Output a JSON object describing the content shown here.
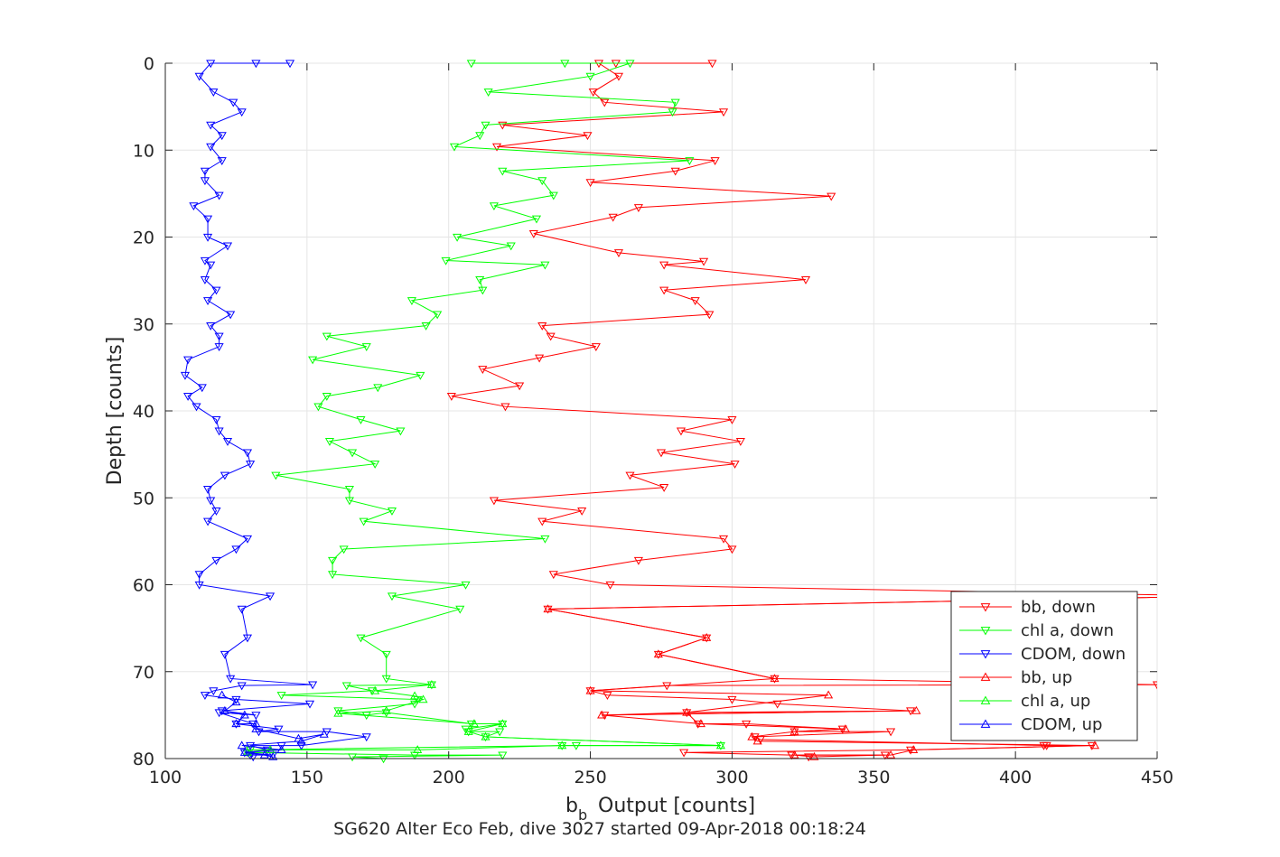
{
  "chart_data": {
    "type": "line",
    "xlabel_main": "b",
    "xlabel_sub": "b",
    "xlabel_rest": "Output [counts]",
    "ylabel": "Depth [counts]",
    "footer": "SG620 Alter Eco Feb, dive 3027 started 09-Apr-2018 00:18:24",
    "xlim": [
      100,
      450
    ],
    "ylim": [
      80,
      0
    ],
    "y_reversed": true,
    "grid": true,
    "legend_position": "bottom-right",
    "xticks": [
      "100",
      "150",
      "200",
      "250",
      "300",
      "350",
      "400",
      "450"
    ],
    "yticks": [
      "0",
      "10",
      "20",
      "30",
      "40",
      "50",
      "60",
      "70",
      "80"
    ],
    "colors": {
      "red": "#ff0000",
      "green": "#00ff00",
      "blue": "#0000ff",
      "grid": "#e5e5e5",
      "axis": "#262626"
    },
    "series": [
      {
        "name": "bb, down",
        "color": "#ff0000",
        "marker": "triangle-down",
        "points": [
          [
            293,
            0
          ],
          [
            259,
            0
          ],
          [
            253,
            0
          ],
          [
            260,
            1.5
          ],
          [
            251,
            3.3
          ],
          [
            255,
            4.5
          ],
          [
            297,
            5.6
          ],
          [
            219,
            7.1
          ],
          [
            249,
            8.3
          ],
          [
            217,
            9.6
          ],
          [
            294,
            11.2
          ],
          [
            280,
            12.4
          ],
          [
            250,
            13.7
          ],
          [
            335,
            15.3
          ],
          [
            267,
            16.6
          ],
          [
            258,
            17.7
          ],
          [
            230,
            19.6
          ],
          [
            260,
            21.8
          ],
          [
            290,
            22.8
          ],
          [
            276,
            23.2
          ],
          [
            326,
            24.9
          ],
          [
            276,
            26.1
          ],
          [
            287,
            27.3
          ],
          [
            292,
            28.9
          ],
          [
            233,
            30.2
          ],
          [
            236,
            31.4
          ],
          [
            252,
            32.6
          ],
          [
            232,
            33.9
          ],
          [
            212,
            35.2
          ],
          [
            225,
            37.1
          ],
          [
            201,
            38.3
          ],
          [
            220,
            39.5
          ],
          [
            300,
            41.0
          ],
          [
            282,
            42.3
          ],
          [
            303,
            43.5
          ],
          [
            275,
            44.8
          ],
          [
            301,
            46.1
          ],
          [
            264,
            47.4
          ],
          [
            276,
            48.8
          ],
          [
            216,
            50.3
          ],
          [
            247,
            51.5
          ],
          [
            233,
            52.7
          ],
          [
            297,
            54.7
          ],
          [
            300,
            55.9
          ],
          [
            267,
            57.2
          ],
          [
            237,
            58.8
          ],
          [
            257,
            60.0
          ],
          [
            473,
            61.3
          ],
          [
            235,
            62.8
          ],
          [
            291,
            66.1
          ],
          [
            274,
            68.0
          ],
          [
            315,
            70.8
          ],
          [
            450,
            71.5
          ],
          [
            277,
            71.6
          ],
          [
            250,
            72.2
          ],
          [
            256,
            72.7
          ],
          [
            300,
            73.2
          ],
          [
            316,
            73.7
          ],
          [
            363,
            74.5
          ],
          [
            255,
            75.0
          ],
          [
            284,
            74.7
          ],
          [
            288,
            76.0
          ],
          [
            305,
            76.0
          ],
          [
            339,
            76.6
          ],
          [
            322,
            76.9
          ],
          [
            356,
            76.9
          ],
          [
            308,
            77.5
          ],
          [
            310,
            77.8
          ],
          [
            411,
            78.5
          ],
          [
            410,
            78.5
          ],
          [
            427,
            78.5
          ],
          [
            363,
            79.0
          ],
          [
            283,
            79.3
          ],
          [
            321,
            79.6
          ],
          [
            354,
            79.6
          ],
          [
            327,
            79.8
          ]
        ]
      },
      {
        "name": "chl a, down",
        "color": "#00ff00",
        "marker": "triangle-down",
        "points": [
          [
            208,
            0
          ],
          [
            241,
            0
          ],
          [
            264,
            0
          ],
          [
            250,
            1.5
          ],
          [
            214,
            3.3
          ],
          [
            280,
            4.5
          ],
          [
            279,
            5.6
          ],
          [
            213,
            7.1
          ],
          [
            211,
            8.3
          ],
          [
            202,
            9.6
          ],
          [
            285,
            11.2
          ],
          [
            219,
            12.4
          ],
          [
            233,
            13.5
          ],
          [
            237,
            15.2
          ],
          [
            216,
            16.4
          ],
          [
            231,
            17.9
          ],
          [
            203,
            20.0
          ],
          [
            222,
            21.0
          ],
          [
            199,
            22.7
          ],
          [
            234,
            23.2
          ],
          [
            211,
            24.9
          ],
          [
            212,
            26.1
          ],
          [
            187,
            27.3
          ],
          [
            196,
            28.9
          ],
          [
            192,
            30.2
          ],
          [
            157,
            31.4
          ],
          [
            171,
            32.6
          ],
          [
            152,
            34.1
          ],
          [
            190,
            35.9
          ],
          [
            175,
            37.3
          ],
          [
            157,
            38.3
          ],
          [
            154,
            39.5
          ],
          [
            169,
            41.0
          ],
          [
            183,
            42.3
          ],
          [
            158,
            43.5
          ],
          [
            166,
            44.8
          ],
          [
            174,
            46.1
          ],
          [
            139,
            47.4
          ],
          [
            165,
            49.0
          ],
          [
            165,
            50.3
          ],
          [
            180,
            51.5
          ],
          [
            170,
            52.7
          ],
          [
            234,
            54.7
          ],
          [
            163,
            55.9
          ],
          [
            159,
            57.2
          ],
          [
            159,
            58.8
          ],
          [
            206,
            60.0
          ],
          [
            180,
            61.3
          ],
          [
            204,
            62.8
          ],
          [
            169,
            66.1
          ],
          [
            178,
            68.0
          ],
          [
            178,
            70.8
          ],
          [
            194,
            71.5
          ],
          [
            164,
            71.6
          ],
          [
            173,
            72.2
          ],
          [
            141,
            72.7
          ],
          [
            189,
            73.2
          ],
          [
            188,
            73.7
          ],
          [
            161,
            74.5
          ],
          [
            171,
            75.0
          ],
          [
            178,
            74.7
          ],
          [
            208,
            76.0
          ],
          [
            219,
            76.0
          ],
          [
            206,
            76.6
          ],
          [
            207,
            76.9
          ],
          [
            218,
            76.9
          ],
          [
            213,
            77.5
          ],
          [
            296,
            78.5
          ],
          [
            245,
            78.5
          ],
          [
            240,
            78.5
          ],
          [
            130,
            79.0
          ],
          [
            129,
            79.3
          ],
          [
            188,
            79.6
          ],
          [
            219,
            79.6
          ],
          [
            166,
            79.8
          ],
          [
            177,
            80.0
          ]
        ]
      },
      {
        "name": "CDOM, down",
        "color": "#0000ff",
        "marker": "triangle-down",
        "points": [
          [
            144,
            0
          ],
          [
            132,
            0
          ],
          [
            116,
            0
          ],
          [
            112,
            1.5
          ],
          [
            117,
            3.3
          ],
          [
            124,
            4.5
          ],
          [
            127,
            5.6
          ],
          [
            116,
            7.1
          ],
          [
            120,
            8.3
          ],
          [
            116,
            9.6
          ],
          [
            120,
            11.2
          ],
          [
            114,
            12.4
          ],
          [
            114,
            13.5
          ],
          [
            119,
            15.2
          ],
          [
            110,
            16.4
          ],
          [
            115,
            17.9
          ],
          [
            115,
            20.0
          ],
          [
            122,
            21.0
          ],
          [
            114,
            22.7
          ],
          [
            116,
            23.2
          ],
          [
            114,
            24.9
          ],
          [
            118,
            26.1
          ],
          [
            115,
            27.3
          ],
          [
            123,
            28.9
          ],
          [
            116,
            30.2
          ],
          [
            119,
            31.4
          ],
          [
            119,
            32.6
          ],
          [
            108,
            34.1
          ],
          [
            107,
            35.9
          ],
          [
            113,
            37.3
          ],
          [
            108,
            38.3
          ],
          [
            111,
            39.5
          ],
          [
            118,
            41.0
          ],
          [
            119,
            42.3
          ],
          [
            122,
            43.5
          ],
          [
            129,
            44.8
          ],
          [
            130,
            46.1
          ],
          [
            121,
            47.4
          ],
          [
            115,
            49.0
          ],
          [
            116,
            50.3
          ],
          [
            118,
            51.5
          ],
          [
            115,
            52.7
          ],
          [
            129,
            54.7
          ],
          [
            125,
            55.9
          ],
          [
            118,
            57.2
          ],
          [
            112,
            58.8
          ],
          [
            112,
            60.0
          ],
          [
            137,
            61.3
          ],
          [
            127,
            62.8
          ],
          [
            129,
            66.1
          ],
          [
            121,
            68.0
          ],
          [
            123,
            70.8
          ],
          [
            152,
            71.5
          ],
          [
            127,
            71.6
          ],
          [
            117,
            72.2
          ],
          [
            114,
            72.7
          ],
          [
            125,
            73.2
          ],
          [
            151,
            73.7
          ],
          [
            120,
            74.5
          ],
          [
            132,
            75.0
          ],
          [
            119,
            74.7
          ],
          [
            131,
            76.0
          ],
          [
            125,
            76.0
          ],
          [
            140,
            76.6
          ],
          [
            133,
            76.9
          ],
          [
            157,
            76.9
          ],
          [
            171,
            77.5
          ],
          [
            148,
            78.5
          ],
          [
            141,
            78.5
          ],
          [
            130,
            78.5
          ],
          [
            136,
            79.0
          ],
          [
            128,
            79.3
          ],
          [
            138,
            79.6
          ],
          [
            130,
            79.6
          ],
          [
            131,
            79.8
          ]
        ]
      },
      {
        "name": "bb, up",
        "color": "#ff0000",
        "marker": "triangle-up",
        "points": [
          [
            329,
            79.8
          ],
          [
            322,
            79.6
          ],
          [
            356,
            79.6
          ],
          [
            364,
            79.0
          ],
          [
            428,
            78.5
          ],
          [
            309,
            78.0
          ],
          [
            307,
            77.5
          ],
          [
            322,
            76.9
          ],
          [
            340,
            76.6
          ],
          [
            289,
            76.0
          ],
          [
            254,
            75.0
          ],
          [
            365,
            74.5
          ],
          [
            284,
            74.7
          ],
          [
            334,
            72.7
          ],
          [
            250,
            72.2
          ],
          [
            315,
            70.8
          ],
          [
            274,
            68.0
          ],
          [
            291,
            66.1
          ],
          [
            235,
            62.8
          ],
          [
            473,
            61.3
          ]
        ]
      },
      {
        "name": "chl a, up",
        "color": "#00ff00",
        "marker": "triangle-up",
        "points": [
          [
            129,
            79.3
          ],
          [
            137,
            79.0
          ],
          [
            189,
            79.0
          ],
          [
            240,
            78.5
          ],
          [
            296,
            78.5
          ],
          [
            213,
            77.5
          ],
          [
            207,
            76.9
          ],
          [
            219,
            76.0
          ],
          [
            209,
            76.0
          ],
          [
            161,
            74.8
          ],
          [
            178,
            74.5
          ],
          [
            191,
            73.2
          ],
          [
            188,
            72.8
          ],
          [
            174,
            72.2
          ],
          [
            194,
            71.5
          ]
        ]
      },
      {
        "name": "CDOM, up",
        "color": "#0000ff",
        "marker": "triangle-up",
        "points": [
          [
            138,
            79.8
          ],
          [
            135,
            79.6
          ],
          [
            128,
            79.3
          ],
          [
            141,
            79.0
          ],
          [
            127,
            78.5
          ],
          [
            148,
            78.0
          ],
          [
            156,
            77.2
          ],
          [
            147,
            77.7
          ],
          [
            132,
            76.6
          ],
          [
            132,
            76.0
          ],
          [
            125,
            76.0
          ],
          [
            128,
            75.0
          ],
          [
            121,
            74.5
          ],
          [
            125,
            73.5
          ],
          [
            120,
            72.7
          ]
        ]
      }
    ]
  }
}
